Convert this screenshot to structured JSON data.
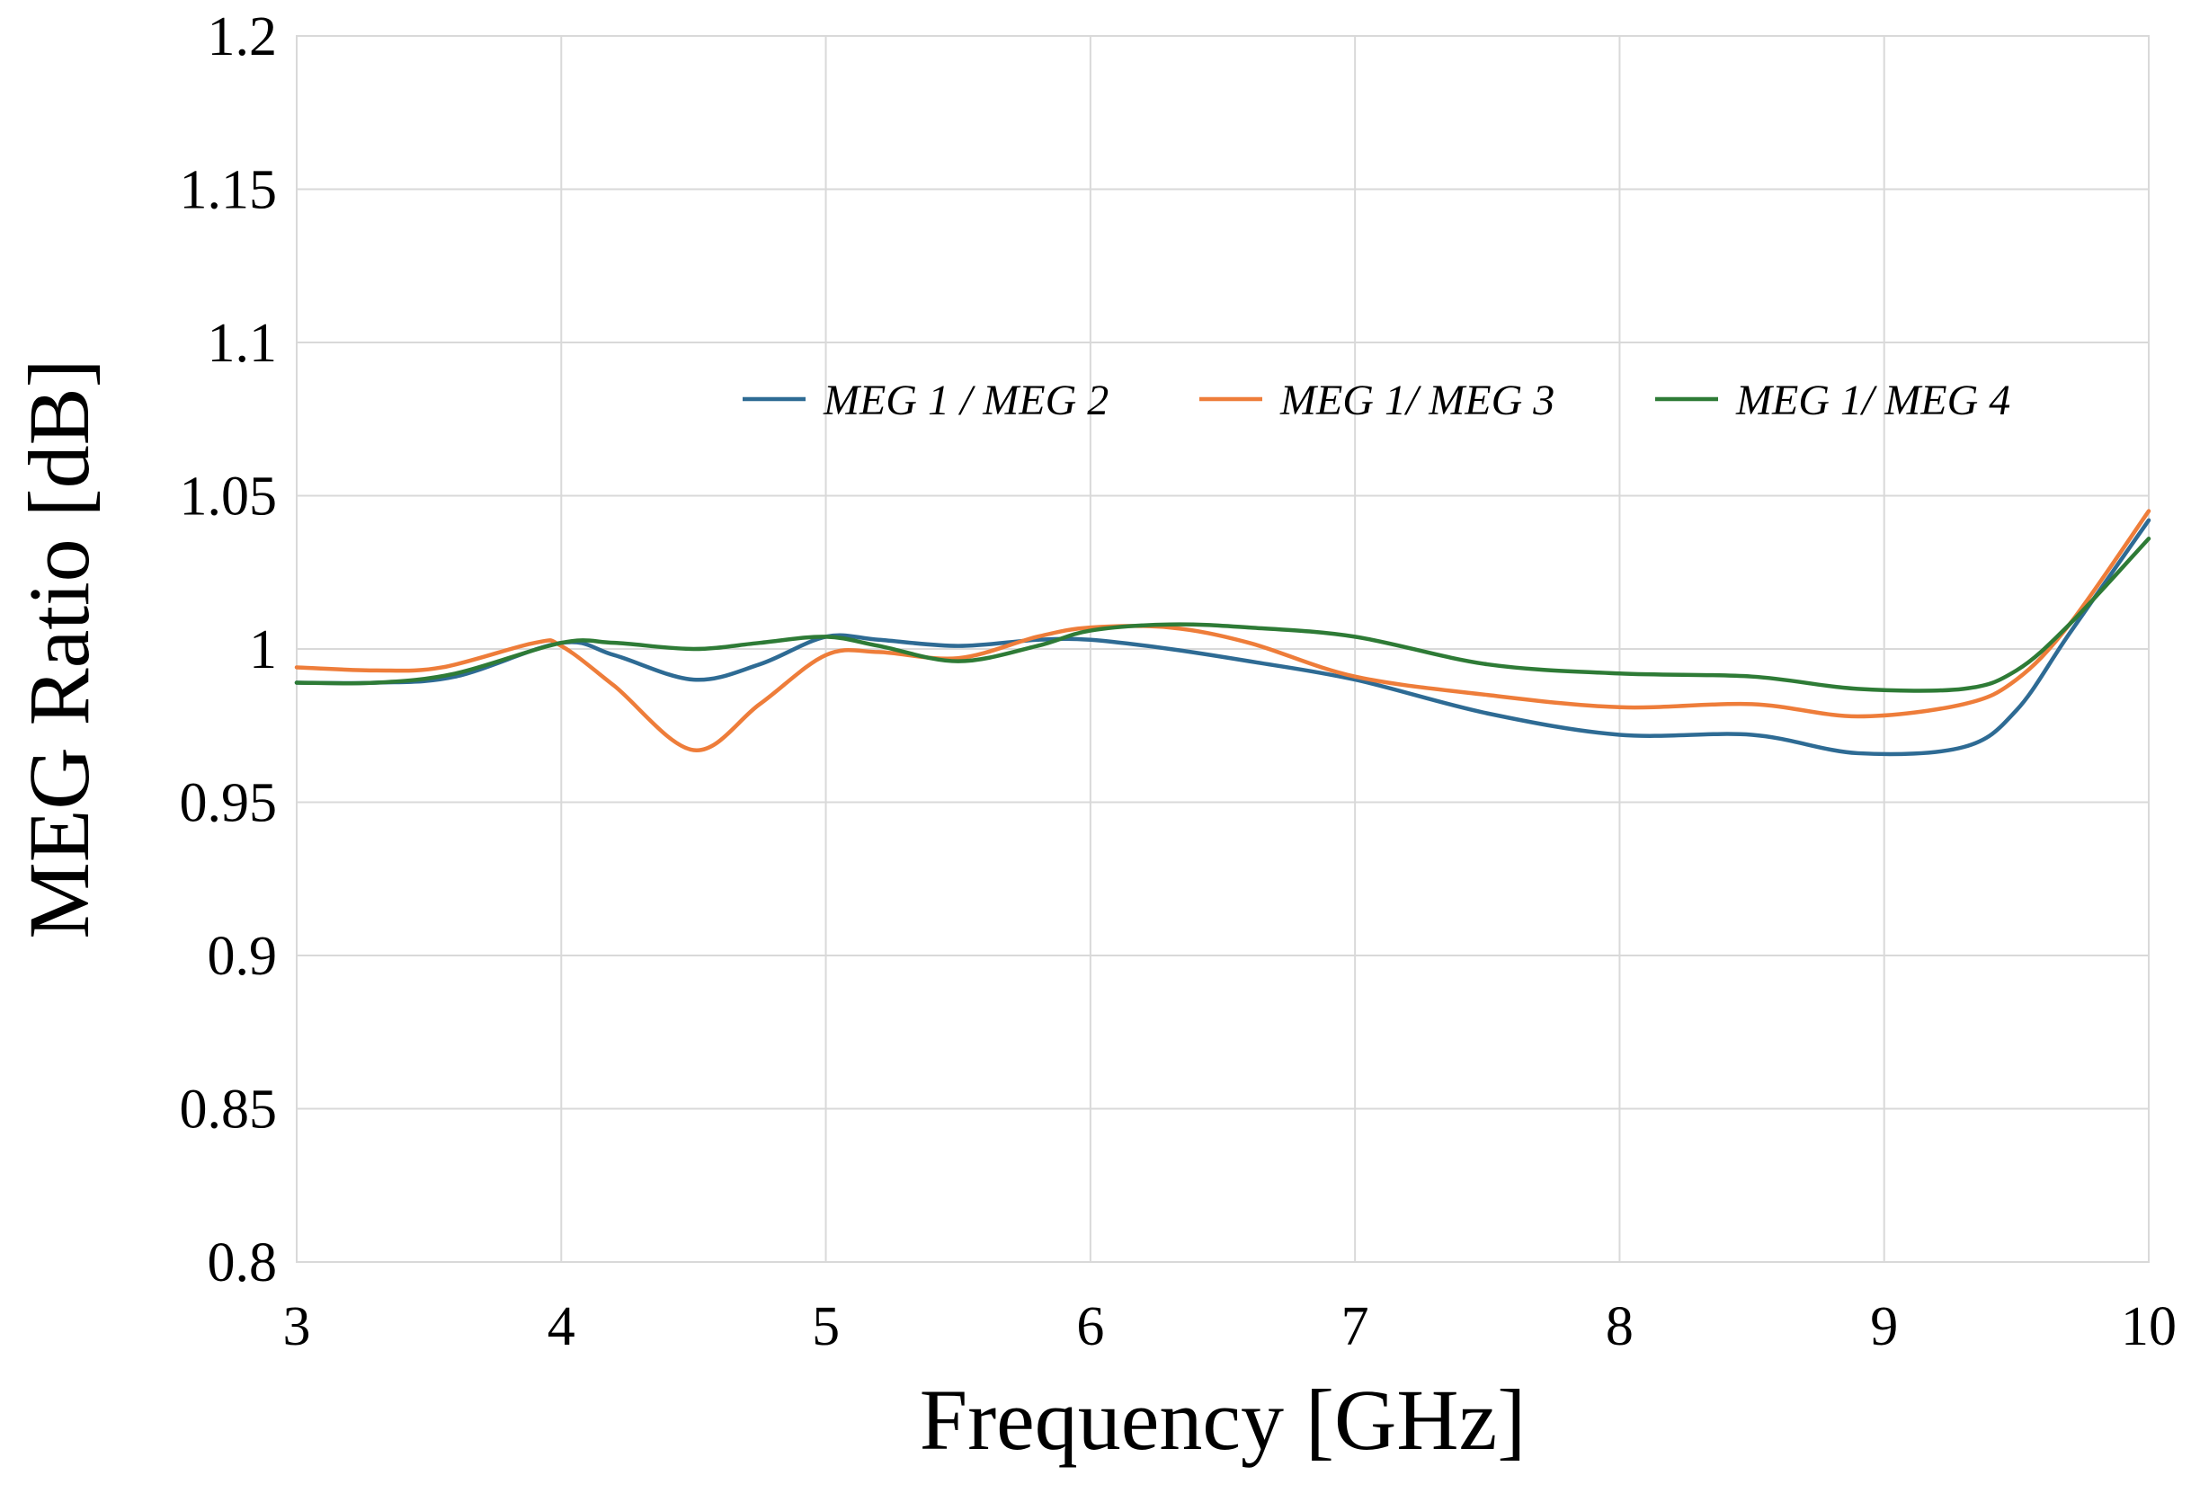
{
  "chart_data": {
    "type": "line",
    "title": "",
    "xlabel": "Frequency [GHz]",
    "ylabel": "MEG Ratio [dB]",
    "xlim": [
      3,
      10
    ],
    "ylim": [
      0.8,
      1.2
    ],
    "x_ticks": [
      3,
      4,
      5,
      6,
      7,
      8,
      9,
      10
    ],
    "y_ticks": [
      0.8,
      0.85,
      0.9,
      0.95,
      1,
      1.05,
      1.1,
      1.15,
      1.2
    ],
    "x_tick_labels": [
      "3",
      "4",
      "5",
      "6",
      "7",
      "8",
      "9",
      "10"
    ],
    "y_tick_labels": [
      "0.8",
      "0.85",
      "0.9",
      "0.95",
      "1",
      "1.05",
      "1.1",
      "1.15",
      "1.2"
    ],
    "grid": true,
    "legend_position": "top-center",
    "series": [
      {
        "name": "MEG 1 / MEG 2",
        "color": "#2e6b94",
        "points": [
          [
            3.0,
            0.989
          ],
          [
            3.3,
            0.989
          ],
          [
            3.6,
            0.991
          ],
          [
            4.0,
            1.002
          ],
          [
            4.2,
            0.998
          ],
          [
            4.5,
            0.99
          ],
          [
            4.75,
            0.995
          ],
          [
            5.0,
            1.004
          ],
          [
            5.2,
            1.003
          ],
          [
            5.5,
            1.001
          ],
          [
            5.8,
            1.003
          ],
          [
            6.0,
            1.003
          ],
          [
            6.3,
            1.0
          ],
          [
            6.6,
            0.996
          ],
          [
            7.0,
            0.99
          ],
          [
            7.5,
            0.979
          ],
          [
            8.0,
            0.972
          ],
          [
            8.5,
            0.972
          ],
          [
            8.9,
            0.966
          ],
          [
            9.3,
            0.968
          ],
          [
            9.5,
            0.98
          ],
          [
            9.7,
            1.005
          ],
          [
            10.0,
            1.042
          ]
        ]
      },
      {
        "name": "MEG 1/ MEG 3",
        "color": "#ee7d3a",
        "points": [
          [
            3.0,
            0.994
          ],
          [
            3.3,
            0.993
          ],
          [
            3.55,
            0.994
          ],
          [
            3.9,
            1.002
          ],
          [
            4.0,
            1.001
          ],
          [
            4.2,
            0.988
          ],
          [
            4.5,
            0.967
          ],
          [
            4.75,
            0.982
          ],
          [
            5.0,
            0.998
          ],
          [
            5.2,
            0.999
          ],
          [
            5.5,
            0.997
          ],
          [
            5.8,
            1.004
          ],
          [
            6.0,
            1.007
          ],
          [
            6.3,
            1.007
          ],
          [
            6.6,
            1.002
          ],
          [
            7.0,
            0.991
          ],
          [
            7.5,
            0.985
          ],
          [
            8.0,
            0.981
          ],
          [
            8.5,
            0.982
          ],
          [
            8.9,
            0.978
          ],
          [
            9.3,
            0.982
          ],
          [
            9.5,
            0.99
          ],
          [
            9.7,
            1.008
          ],
          [
            10.0,
            1.045
          ]
        ]
      },
      {
        "name": "MEG 1/ MEG 4",
        "color": "#2e7b36",
        "points": [
          [
            3.0,
            0.989
          ],
          [
            3.3,
            0.989
          ],
          [
            3.6,
            0.992
          ],
          [
            4.0,
            1.002
          ],
          [
            4.2,
            1.002
          ],
          [
            4.5,
            1.0
          ],
          [
            4.75,
            1.002
          ],
          [
            5.0,
            1.004
          ],
          [
            5.2,
            1.001
          ],
          [
            5.5,
            0.996
          ],
          [
            5.8,
            1.001
          ],
          [
            6.0,
            1.006
          ],
          [
            6.3,
            1.008
          ],
          [
            6.6,
            1.007
          ],
          [
            7.0,
            1.004
          ],
          [
            7.5,
            0.995
          ],
          [
            8.0,
            0.992
          ],
          [
            8.5,
            0.991
          ],
          [
            8.9,
            0.987
          ],
          [
            9.3,
            0.987
          ],
          [
            9.5,
            0.993
          ],
          [
            9.7,
            1.008
          ],
          [
            10.0,
            1.036
          ]
        ]
      }
    ]
  }
}
